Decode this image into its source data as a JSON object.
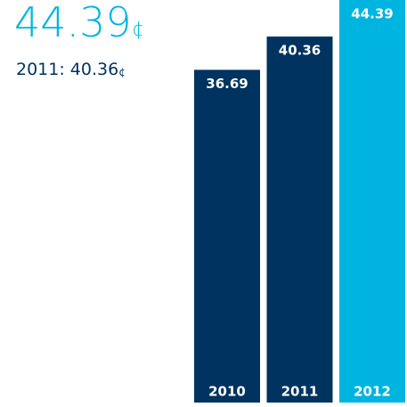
{
  "chart_data": {
    "type": "bar",
    "title": "44.39",
    "title_unit": "¢",
    "subtitle": "2011: 40.36",
    "subtitle_unit": "¢",
    "categories": [
      "2010",
      "2011",
      "2012"
    ],
    "values": [
      36.69,
      40.36,
      44.39
    ],
    "colors": [
      "#00335f",
      "#00335f",
      "#00b4e0"
    ]
  }
}
